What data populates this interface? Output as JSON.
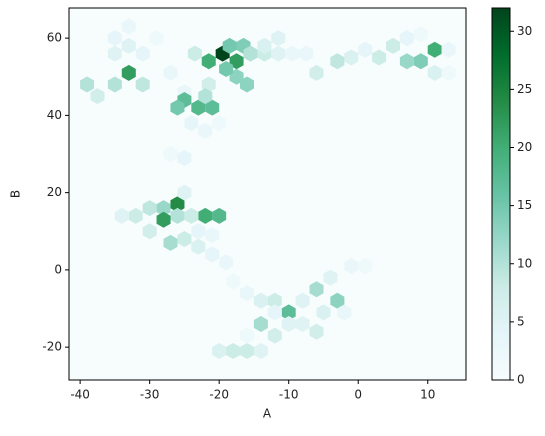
{
  "chart_data": {
    "type": "hexbin",
    "x_label": "A",
    "y_label": "B",
    "xlim": [
      -41.6,
      15.5
    ],
    "ylim": [
      -28.5,
      67.8
    ],
    "xticks": [
      -40,
      -30,
      -20,
      -10,
      0,
      10
    ],
    "yticks": [
      -20,
      0,
      20,
      40,
      60
    ],
    "colormap": "BuGn",
    "clim": [
      0,
      32
    ],
    "cticks": [
      0,
      5,
      10,
      15,
      20,
      25,
      30
    ],
    "x": [
      -19.5,
      -21.5,
      -17.5,
      -18.5,
      -16.5,
      -15.5,
      -17.5,
      -19,
      -23.5,
      -13.5,
      -13.5,
      -11.5,
      -11.5,
      -9.5,
      -7.5,
      -6,
      -16,
      -21.5,
      -33,
      -35,
      -31,
      -39,
      -37.5,
      -35,
      -33,
      -31,
      -35,
      -33,
      -29,
      -27,
      -25,
      -25,
      -26,
      -23,
      -21,
      -22,
      -24,
      -22,
      -20,
      -27,
      -25,
      11,
      9,
      7,
      5,
      3,
      -1,
      1,
      -3,
      13,
      11,
      7,
      13,
      9,
      -26,
      -28,
      -30,
      -26,
      -28,
      -22,
      -20,
      -24,
      -32,
      -34,
      -30,
      -27,
      -25,
      -23,
      -21,
      -19,
      -25,
      -23,
      -21,
      -10,
      -12,
      -14,
      -14,
      -12,
      -10,
      -8,
      -6,
      -4,
      -3,
      -5,
      -2,
      -1,
      1,
      -6,
      -8,
      -16,
      -18,
      -18,
      -20,
      -16,
      -14,
      -16,
      -12
    ],
    "y": [
      56,
      54,
      54,
      58,
      58,
      56,
      50,
      52,
      56,
      56,
      58,
      60,
      56,
      56,
      56,
      51,
      48,
      48,
      51,
      48,
      48,
      48,
      45,
      56,
      58,
      56,
      60,
      63,
      60,
      51,
      46,
      44,
      42,
      42,
      42,
      45,
      38,
      36,
      38,
      30,
      29,
      57,
      54,
      54,
      58,
      55,
      55,
      57,
      54,
      57,
      51,
      60,
      51,
      61,
      17,
      16,
      16,
      14,
      13,
      14,
      14,
      14,
      14,
      14,
      10,
      7,
      8,
      6,
      4,
      2,
      20,
      10,
      9,
      -11,
      -8,
      -8,
      -14,
      -17,
      -14,
      -8,
      -5,
      -2,
      -8,
      -11,
      -11,
      1,
      1,
      -16,
      -14,
      -6,
      -3,
      -21,
      -21,
      -21,
      -21,
      -17,
      -11
    ],
    "values": [
      32,
      20,
      22,
      15,
      14,
      10,
      13,
      15,
      8,
      8,
      6,
      5,
      5,
      3,
      3,
      7,
      13,
      7,
      22,
      10,
      9,
      10,
      7,
      5,
      5,
      4,
      4,
      3,
      2,
      3,
      3,
      17,
      15,
      18,
      17,
      10,
      4,
      3,
      2,
      2,
      4,
      20,
      14,
      12,
      8,
      8,
      6,
      4,
      9,
      3,
      6,
      4,
      2,
      2,
      24,
      12,
      9,
      10,
      22,
      20,
      18,
      8,
      8,
      5,
      7,
      11,
      8,
      6,
      4,
      3,
      5,
      4,
      3,
      17,
      8,
      6,
      11,
      7,
      5,
      5,
      11,
      5,
      13,
      6,
      3,
      3,
      2,
      7,
      5,
      3,
      2,
      8,
      6,
      8,
      5,
      2,
      4
    ]
  }
}
